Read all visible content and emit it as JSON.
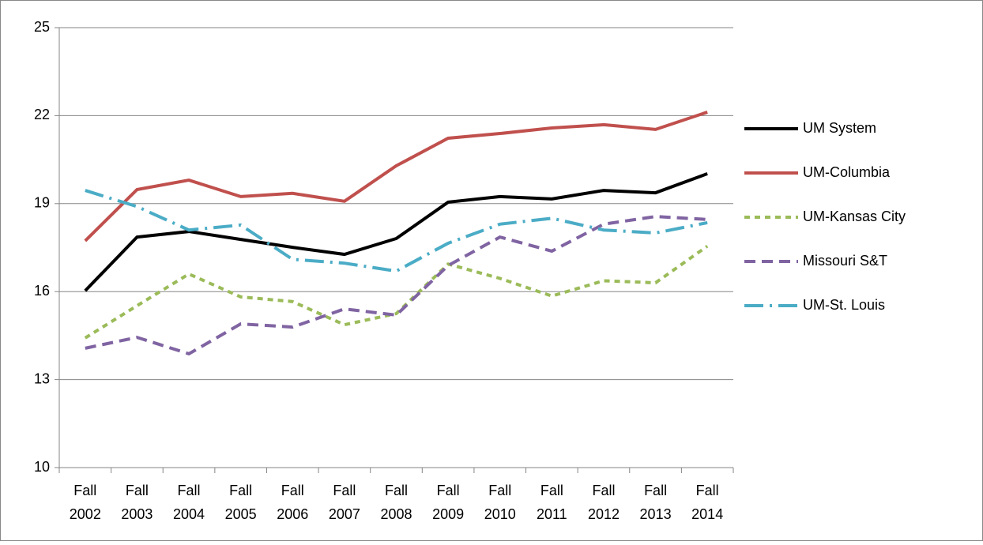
{
  "chart_data": {
    "type": "line",
    "categories": [
      "Fall 2002",
      "Fall 2003",
      "Fall 2004",
      "Fall 2005",
      "Fall 2006",
      "Fall 2007",
      "Fall 2008",
      "Fall 2009",
      "Fall 2010",
      "Fall 2011",
      "Fall 2012",
      "Fall 2013",
      "Fall 2014"
    ],
    "series": [
      {
        "name": "UM System",
        "color": "#000000",
        "dash": "solid",
        "values": [
          16.03,
          17.86,
          18.05,
          17.78,
          17.51,
          17.27,
          17.81,
          19.05,
          19.24,
          19.16,
          19.45,
          19.37,
          20.02
        ]
      },
      {
        "name": "UM-Columbia",
        "color": "#c0504d",
        "dash": "solid",
        "values": [
          17.73,
          19.48,
          19.8,
          19.24,
          19.35,
          19.08,
          20.29,
          21.23,
          21.39,
          21.58,
          21.69,
          21.53,
          22.12
        ]
      },
      {
        "name": "UM-Kansas City",
        "color": "#9bbb59",
        "dash": "short",
        "values": [
          14.42,
          15.52,
          16.6,
          15.82,
          15.66,
          14.87,
          15.25,
          16.94,
          16.45,
          15.85,
          16.37,
          16.3,
          17.55
        ]
      },
      {
        "name": "Missouri S&T",
        "color": "#8064a2",
        "dash": "medium",
        "values": [
          14.07,
          14.44,
          13.88,
          14.9,
          14.79,
          15.41,
          15.2,
          16.89,
          17.86,
          17.38,
          18.3,
          18.56,
          18.46
        ]
      },
      {
        "name": "UM-St. Louis",
        "color": "#4bacc6",
        "dash": "long-dot",
        "values": [
          19.45,
          18.9,
          18.1,
          18.27,
          17.1,
          16.97,
          16.7,
          17.65,
          18.3,
          18.5,
          18.1,
          18.0,
          18.35
        ]
      }
    ],
    "ylim": [
      10,
      25
    ],
    "yticks": [
      10,
      13,
      16,
      19,
      22,
      25
    ],
    "grid": true,
    "legend": "right"
  }
}
